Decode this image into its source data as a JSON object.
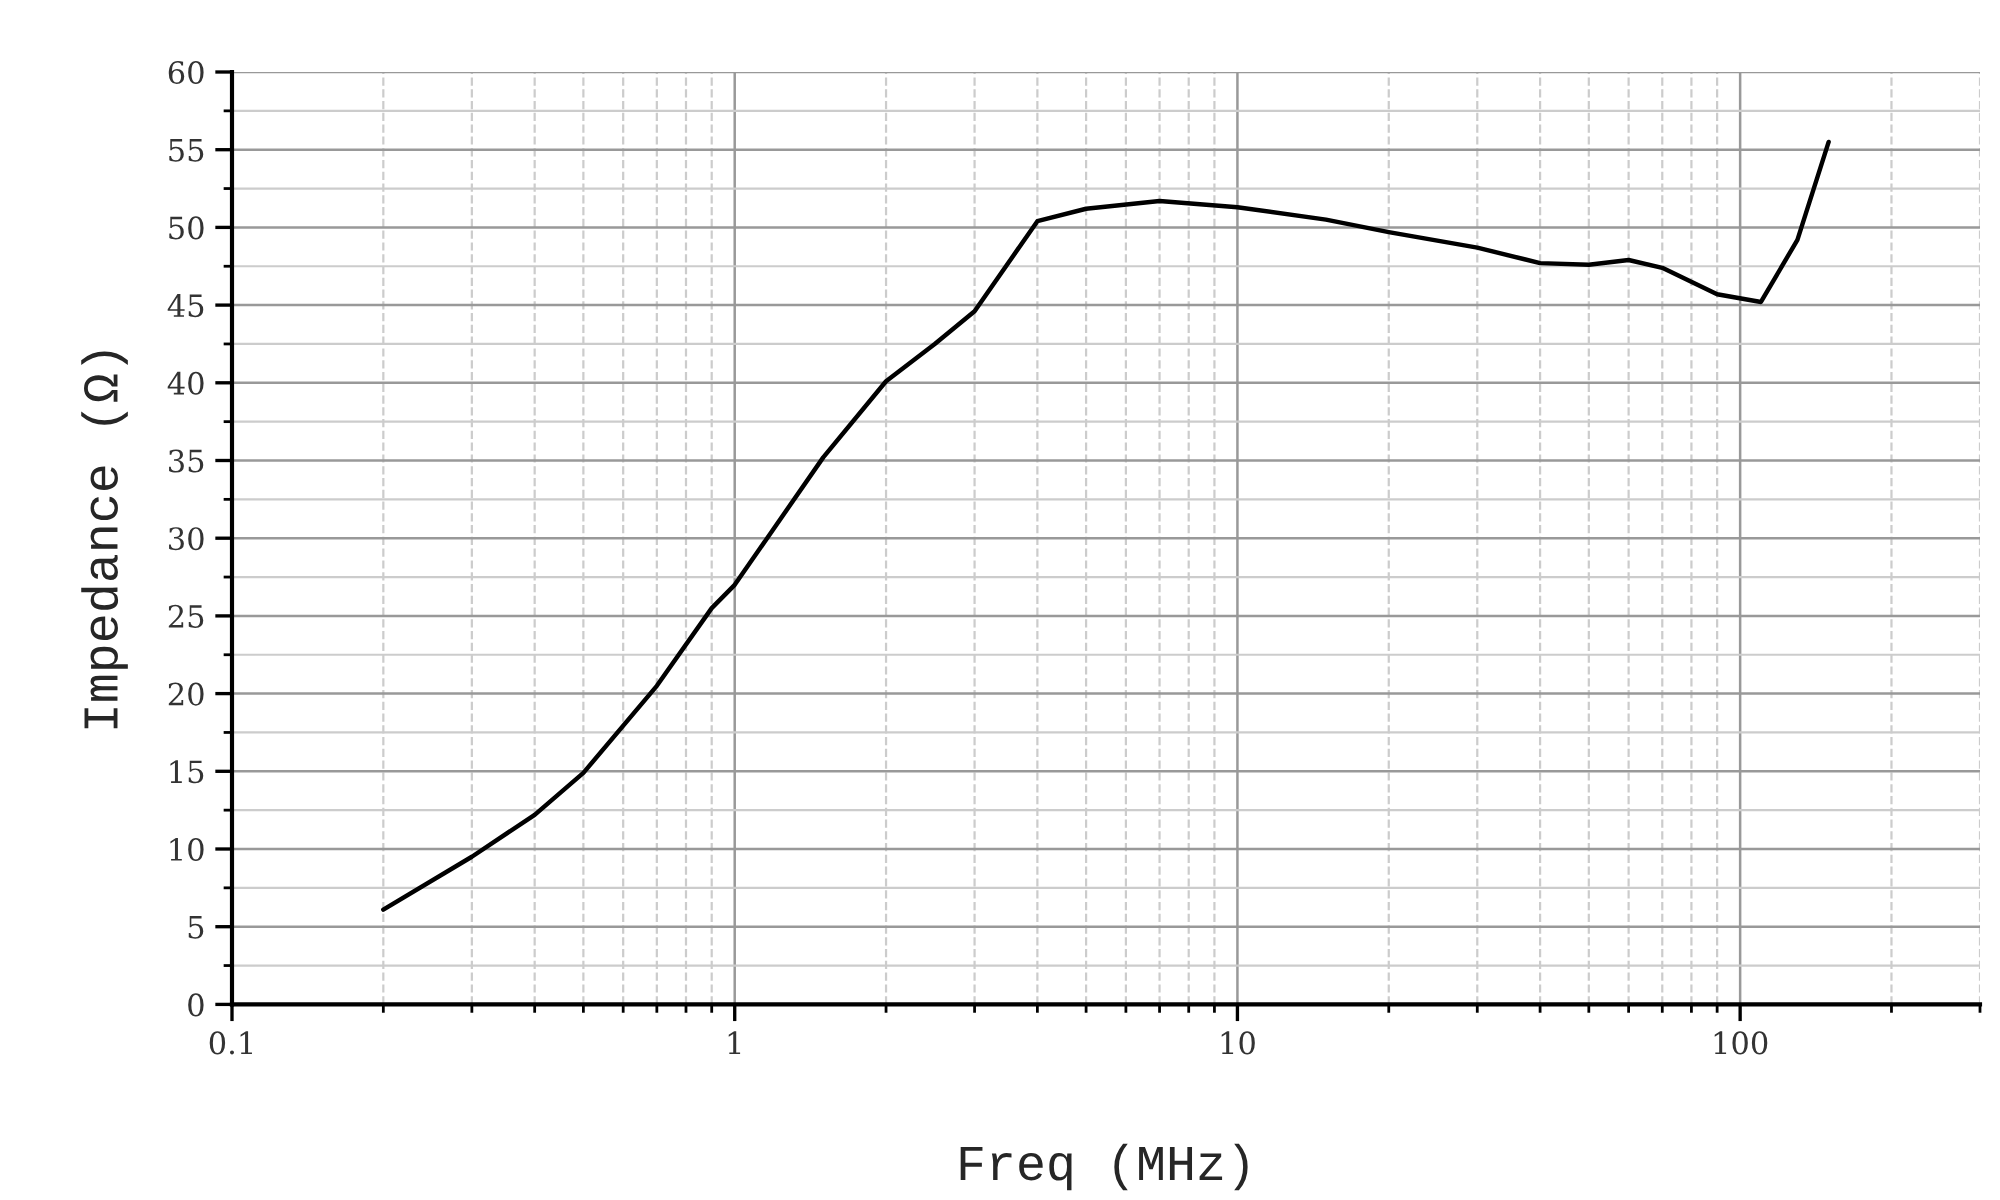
{
  "chart_data": {
    "type": "line",
    "xlabel": "Freq (MHz)",
    "ylabel": "Impedance (Ω)",
    "log": "x",
    "grid": true,
    "marker": "none",
    "line_style": "solid",
    "xlim": [
      0.1,
      300
    ],
    "xticks": [
      0.1,
      1,
      10,
      100
    ],
    "ylim": [
      0,
      60
    ],
    "yticks": [
      0,
      5,
      10,
      15,
      20,
      25,
      30,
      35,
      40,
      45,
      50,
      55,
      60
    ],
    "series": [
      {
        "color": "#000000",
        "x": [
          0.2,
          0.3,
          0.4,
          0.5,
          0.7,
          0.9,
          1.0,
          1.5,
          2,
          2.5,
          3,
          4,
          5,
          7,
          10,
          15,
          20,
          30,
          40,
          50,
          60,
          70,
          90,
          110,
          130,
          150
        ],
        "values": [
          6.1,
          9.5,
          12.2,
          14.9,
          20.5,
          25.5,
          27.0,
          35.2,
          40.1,
          42.5,
          44.6,
          50.4,
          51.2,
          51.7,
          51.3,
          50.5,
          49.7,
          48.7,
          47.7,
          47.6,
          47.9,
          47.4,
          45.7,
          45.2,
          49.2,
          55.5
        ]
      }
    ]
  }
}
